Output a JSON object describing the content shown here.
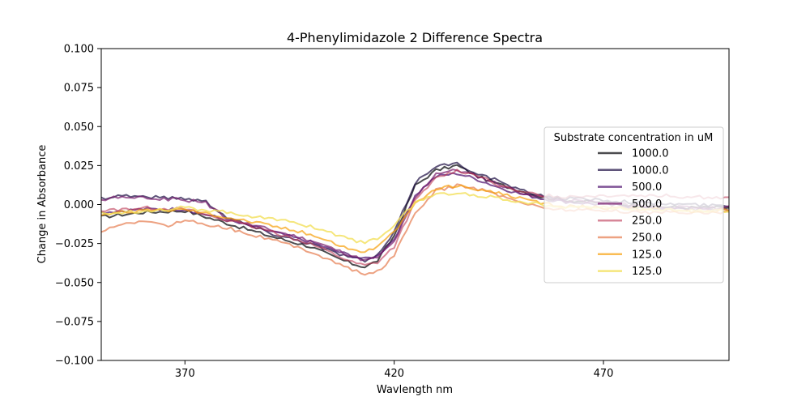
{
  "chart_data": {
    "type": "line",
    "title": "4-Phenylimidazole 2 Difference Spectra",
    "xlabel": "Wavlength nm",
    "ylabel": "Change in Absorbance",
    "xlim": [
      350,
      500
    ],
    "ylim": [
      -0.1,
      0.1
    ],
    "x_ticks": [
      370,
      420,
      470
    ],
    "x_tick_labels": [
      "370",
      "420",
      "470"
    ],
    "y_ticks": [
      0.1,
      0.075,
      0.05,
      0.025,
      0.0,
      -0.025,
      -0.05,
      -0.075,
      -0.1
    ],
    "y_tick_labels": [
      "0.100",
      "0.075",
      "0.050",
      "0.025",
      "0.000",
      "−0.025",
      "−0.050",
      "−0.075",
      "−0.100"
    ],
    "grid": false,
    "legend": {
      "title": "Substrate concentration in uM",
      "placement": "center-right"
    },
    "series": [
      {
        "name": "1000.0",
        "color": "#000004",
        "opacity": 0.7,
        "points": [
          [
            350,
            -0.008
          ],
          [
            360,
            -0.005
          ],
          [
            370,
            -0.004
          ],
          [
            380,
            -0.012
          ],
          [
            390,
            -0.02
          ],
          [
            400,
            -0.027
          ],
          [
            405,
            -0.033
          ],
          [
            410,
            -0.038
          ],
          [
            413,
            -0.04
          ],
          [
            416,
            -0.036
          ],
          [
            420,
            -0.02
          ],
          [
            425,
            0.012
          ],
          [
            430,
            0.022
          ],
          [
            435,
            0.025
          ],
          [
            440,
            0.018
          ],
          [
            445,
            0.013
          ],
          [
            450,
            0.009
          ],
          [
            455,
            0.005
          ],
          [
            460,
            0.003
          ],
          [
            470,
            0.001
          ],
          [
            480,
            -0.001
          ],
          [
            490,
            -0.002
          ],
          [
            500,
            -0.002
          ]
        ]
      },
      {
        "name": "1000.0",
        "color": "#1b0c41",
        "opacity": 0.7,
        "points": [
          [
            350,
            0.004
          ],
          [
            355,
            0.006
          ],
          [
            360,
            0.005
          ],
          [
            370,
            0.004
          ],
          [
            375,
            0.002
          ],
          [
            380,
            -0.008
          ],
          [
            390,
            -0.018
          ],
          [
            400,
            -0.025
          ],
          [
            405,
            -0.03
          ],
          [
            410,
            -0.034
          ],
          [
            413,
            -0.036
          ],
          [
            416,
            -0.033
          ],
          [
            420,
            -0.018
          ],
          [
            425,
            0.014
          ],
          [
            430,
            0.025
          ],
          [
            435,
            0.026
          ],
          [
            440,
            0.02
          ],
          [
            445,
            0.015
          ],
          [
            450,
            0.009
          ],
          [
            455,
            0.006
          ],
          [
            460,
            0.004
          ],
          [
            470,
            0.003
          ],
          [
            480,
            0.001
          ],
          [
            490,
            0.0
          ],
          [
            500,
            -0.001
          ]
        ]
      },
      {
        "name": "500.0",
        "color": "#4a0c6b",
        "opacity": 0.7,
        "points": [
          [
            350,
            -0.005
          ],
          [
            360,
            -0.003
          ],
          [
            370,
            -0.003
          ],
          [
            380,
            -0.01
          ],
          [
            390,
            -0.017
          ],
          [
            400,
            -0.024
          ],
          [
            405,
            -0.029
          ],
          [
            410,
            -0.033
          ],
          [
            413,
            -0.035
          ],
          [
            416,
            -0.033
          ],
          [
            420,
            -0.022
          ],
          [
            425,
            0.006
          ],
          [
            430,
            0.018
          ],
          [
            435,
            0.02
          ],
          [
            440,
            0.016
          ],
          [
            445,
            0.011
          ],
          [
            450,
            0.007
          ],
          [
            455,
            0.004
          ],
          [
            460,
            0.002
          ],
          [
            470,
            0.0
          ],
          [
            480,
            -0.002
          ],
          [
            490,
            -0.003
          ],
          [
            500,
            -0.003
          ]
        ]
      },
      {
        "name": "500.0",
        "color": "#781c6d",
        "opacity": 0.7,
        "points": [
          [
            350,
            0.003
          ],
          [
            355,
            0.005
          ],
          [
            360,
            0.004
          ],
          [
            370,
            0.003
          ],
          [
            375,
            0.001
          ],
          [
            380,
            -0.009
          ],
          [
            390,
            -0.016
          ],
          [
            400,
            -0.023
          ],
          [
            405,
            -0.028
          ],
          [
            410,
            -0.033
          ],
          [
            413,
            -0.036
          ],
          [
            416,
            -0.034
          ],
          [
            420,
            -0.024
          ],
          [
            425,
            0.004
          ],
          [
            430,
            0.02
          ],
          [
            435,
            0.022
          ],
          [
            440,
            0.018
          ],
          [
            445,
            0.013
          ],
          [
            450,
            0.008
          ],
          [
            455,
            0.005
          ],
          [
            460,
            0.003
          ],
          [
            470,
            0.001
          ],
          [
            480,
            -0.001
          ],
          [
            490,
            -0.002
          ],
          [
            500,
            -0.002
          ]
        ]
      },
      {
        "name": "250.0",
        "color": "#bc3754",
        "opacity": 0.6,
        "points": [
          [
            350,
            -0.004
          ],
          [
            360,
            -0.002
          ],
          [
            370,
            -0.003
          ],
          [
            380,
            -0.01
          ],
          [
            390,
            -0.017
          ],
          [
            400,
            -0.025
          ],
          [
            405,
            -0.031
          ],
          [
            410,
            -0.037
          ],
          [
            413,
            -0.039
          ],
          [
            416,
            -0.037
          ],
          [
            420,
            -0.027
          ],
          [
            425,
            0.002
          ],
          [
            430,
            0.017
          ],
          [
            435,
            0.022
          ],
          [
            440,
            0.019
          ],
          [
            445,
            0.012
          ],
          [
            450,
            0.008
          ],
          [
            455,
            0.006
          ],
          [
            460,
            0.005
          ],
          [
            470,
            0.006
          ],
          [
            480,
            0.006
          ],
          [
            490,
            0.005
          ],
          [
            500,
            0.004
          ]
        ]
      },
      {
        "name": "250.0",
        "color": "#e1642e",
        "opacity": 0.6,
        "points": [
          [
            350,
            -0.017
          ],
          [
            360,
            -0.01
          ],
          [
            365,
            -0.014
          ],
          [
            370,
            -0.01
          ],
          [
            380,
            -0.015
          ],
          [
            390,
            -0.022
          ],
          [
            400,
            -0.03
          ],
          [
            405,
            -0.036
          ],
          [
            410,
            -0.042
          ],
          [
            413,
            -0.045
          ],
          [
            416,
            -0.043
          ],
          [
            420,
            -0.033
          ],
          [
            425,
            -0.005
          ],
          [
            430,
            0.009
          ],
          [
            435,
            0.012
          ],
          [
            440,
            0.01
          ],
          [
            445,
            0.006
          ],
          [
            450,
            0.002
          ],
          [
            455,
            -0.002
          ],
          [
            460,
            -0.003
          ],
          [
            470,
            -0.004
          ],
          [
            480,
            -0.005
          ],
          [
            490,
            -0.005
          ],
          [
            500,
            -0.005
          ]
        ]
      },
      {
        "name": "125.0",
        "color": "#f6a00c",
        "opacity": 0.7,
        "points": [
          [
            350,
            -0.006
          ],
          [
            360,
            -0.004
          ],
          [
            370,
            -0.003
          ],
          [
            380,
            -0.008
          ],
          [
            390,
            -0.013
          ],
          [
            400,
            -0.019
          ],
          [
            405,
            -0.024
          ],
          [
            410,
            -0.029
          ],
          [
            413,
            -0.03
          ],
          [
            416,
            -0.027
          ],
          [
            420,
            -0.018
          ],
          [
            425,
            0.001
          ],
          [
            430,
            0.01
          ],
          [
            435,
            0.012
          ],
          [
            440,
            0.01
          ],
          [
            445,
            0.007
          ],
          [
            450,
            0.004
          ],
          [
            455,
            0.001
          ],
          [
            460,
            -0.001
          ],
          [
            470,
            -0.002
          ],
          [
            480,
            -0.003
          ],
          [
            490,
            -0.004
          ],
          [
            500,
            -0.004
          ]
        ]
      },
      {
        "name": "125.0",
        "color": "#f3e05a",
        "opacity": 0.8,
        "points": [
          [
            350,
            -0.006
          ],
          [
            360,
            -0.004
          ],
          [
            370,
            -0.002
          ],
          [
            380,
            -0.005
          ],
          [
            390,
            -0.009
          ],
          [
            395,
            -0.011
          ],
          [
            400,
            -0.014
          ],
          [
            405,
            -0.018
          ],
          [
            410,
            -0.023
          ],
          [
            413,
            -0.024
          ],
          [
            416,
            -0.022
          ],
          [
            420,
            -0.013
          ],
          [
            425,
            0.001
          ],
          [
            430,
            0.007
          ],
          [
            435,
            0.007
          ],
          [
            440,
            0.006
          ],
          [
            445,
            0.004
          ],
          [
            450,
            0.002
          ],
          [
            455,
            0.0
          ],
          [
            460,
            -0.001
          ],
          [
            470,
            -0.002
          ],
          [
            480,
            -0.003
          ],
          [
            490,
            -0.004
          ],
          [
            500,
            -0.004
          ]
        ]
      }
    ]
  }
}
